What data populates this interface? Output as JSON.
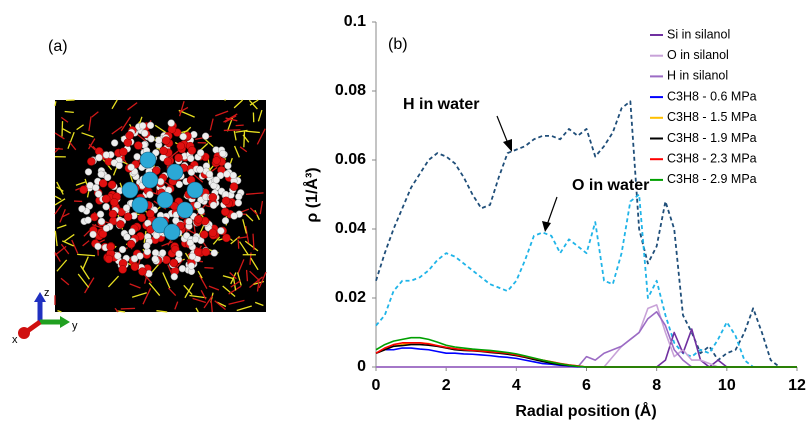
{
  "panel_a": {
    "label": "(a)",
    "axis_labels": {
      "x": "x",
      "y": "y",
      "z": "z"
    }
  },
  "chart_data": {
    "type": "line",
    "panel_label": "(b)",
    "x_label": "Radial position (Å)",
    "y_label": "ρ (1/Å³)",
    "xlim": [
      0,
      12
    ],
    "xticks": [
      0,
      2,
      4,
      6,
      8,
      10,
      12
    ],
    "ylim": [
      0,
      0.1
    ],
    "yticks": [
      0,
      0.02,
      0.04,
      0.06,
      0.08,
      0.1
    ],
    "grid": false,
    "legend": "upper right",
    "annotations": [
      {
        "text": "H in water",
        "color": "#1f4e79"
      },
      {
        "text": "O in water",
        "color": "#1fb4e8"
      }
    ],
    "x": [
      0,
      0.25,
      0.5,
      0.75,
      1,
      1.25,
      1.5,
      1.75,
      2,
      2.25,
      2.5,
      2.75,
      3,
      3.25,
      3.5,
      3.75,
      4,
      4.25,
      4.5,
      4.75,
      5,
      5.25,
      5.5,
      5.75,
      6,
      6.25,
      6.5,
      6.75,
      7,
      7.25,
      7.5,
      7.75,
      8,
      8.25,
      8.5,
      8.75,
      9,
      9.25,
      9.5,
      9.75,
      10,
      10.25,
      10.5,
      10.75,
      11,
      11.25,
      11.5,
      11.75,
      12
    ],
    "series": [
      {
        "name": "H in water",
        "color": "#1f4e79",
        "linestyle": "dashed",
        "in_legend": false,
        "values": [
          0.025,
          0.033,
          0.04,
          0.046,
          0.052,
          0.056,
          0.06,
          0.062,
          0.061,
          0.059,
          0.055,
          0.05,
          0.046,
          0.047,
          0.055,
          0.062,
          0.063,
          0.064,
          0.066,
          0.067,
          0.067,
          0.066,
          0.069,
          0.067,
          0.069,
          0.061,
          0.064,
          0.068,
          0.075,
          0.077,
          0.04,
          0.03,
          0.035,
          0.048,
          0.04,
          0.015,
          0.01,
          0.004,
          0.006,
          0.002,
          0.004,
          0.005,
          0.01,
          0.017,
          0.01,
          0.002,
          0,
          0,
          0
        ]
      },
      {
        "name": "O in water",
        "color": "#1fb4e8",
        "linestyle": "dashed",
        "in_legend": false,
        "values": [
          0.012,
          0.015,
          0.022,
          0.025,
          0.025,
          0.026,
          0.028,
          0.031,
          0.033,
          0.032,
          0.03,
          0.028,
          0.026,
          0.024,
          0.023,
          0.022,
          0.025,
          0.031,
          0.038,
          0.039,
          0.038,
          0.033,
          0.037,
          0.035,
          0.033,
          0.042,
          0.025,
          0.024,
          0.033,
          0.048,
          0.05,
          0.02,
          0.025,
          0.015,
          0.007,
          0.004,
          0.003,
          0.005,
          0.004,
          0.008,
          0.013,
          0.009,
          0.002,
          0,
          0,
          0,
          0,
          0,
          0
        ]
      },
      {
        "name": "Si in silanol",
        "color": "#7030a0",
        "linestyle": "solid",
        "in_legend": true,
        "values": [
          0,
          0,
          0,
          0,
          0,
          0,
          0,
          0,
          0,
          0,
          0,
          0,
          0,
          0,
          0,
          0,
          0,
          0,
          0,
          0,
          0,
          0,
          0,
          0,
          0,
          0,
          0,
          0,
          0,
          0,
          0,
          0,
          0,
          0.002,
          0.01,
          0.004,
          0.011,
          0.002,
          0,
          0.002,
          0,
          0,
          0,
          0,
          0,
          0,
          0,
          0,
          0
        ]
      },
      {
        "name": "O in silanol",
        "color": "#c8a2d8",
        "linestyle": "solid",
        "in_legend": true,
        "values": [
          0,
          0,
          0,
          0,
          0,
          0,
          0,
          0,
          0,
          0,
          0,
          0,
          0,
          0,
          0,
          0,
          0,
          0,
          0,
          0,
          0,
          0,
          0,
          0,
          0,
          0,
          0,
          0.003,
          0.006,
          0.008,
          0.01,
          0.017,
          0.018,
          0.01,
          0.003,
          0.005,
          0.002,
          0.002,
          0.001,
          0,
          0,
          0,
          0,
          0,
          0,
          0,
          0,
          0,
          0
        ]
      },
      {
        "name": "H in silanol",
        "color": "#9b6bc4",
        "linestyle": "solid",
        "in_legend": true,
        "values": [
          0,
          0,
          0,
          0,
          0,
          0,
          0,
          0,
          0,
          0,
          0,
          0,
          0,
          0,
          0,
          0,
          0,
          0,
          0,
          0,
          0,
          0,
          0,
          0,
          0.003,
          0.002,
          0.004,
          0.005,
          0.006,
          0.008,
          0.01,
          0.014,
          0.016,
          0.012,
          0.005,
          0.002,
          0,
          0,
          0,
          0,
          0,
          0,
          0,
          0,
          0,
          0,
          0,
          0,
          0
        ]
      },
      {
        "name": "C3H8 - 0.6 MPa",
        "color": "#0000ff",
        "linestyle": "solid",
        "in_legend": true,
        "values": [
          0.004,
          0.005,
          0.005,
          0.0055,
          0.0055,
          0.0052,
          0.005,
          0.0045,
          0.004,
          0.004,
          0.0038,
          0.0037,
          0.0035,
          0.0033,
          0.003,
          0.0028,
          0.0025,
          0.002,
          0.0015,
          0.001,
          0.0008,
          0.0005,
          0.0003,
          0.0001,
          0,
          0,
          0,
          0,
          0,
          0,
          0,
          0,
          0,
          0,
          0,
          0,
          0,
          0,
          0,
          0,
          0,
          0,
          0,
          0,
          0,
          0,
          0,
          0,
          0
        ]
      },
      {
        "name": "C3H8 - 1.5 MPa",
        "color": "#ffc000",
        "linestyle": "solid",
        "in_legend": true,
        "values": [
          0.004,
          0.005,
          0.006,
          0.0065,
          0.007,
          0.007,
          0.0068,
          0.0062,
          0.0055,
          0.005,
          0.005,
          0.0048,
          0.0047,
          0.0045,
          0.0042,
          0.004,
          0.0035,
          0.003,
          0.0025,
          0.002,
          0.0015,
          0.001,
          0.0006,
          0.0003,
          0,
          0,
          0,
          0,
          0,
          0,
          0,
          0,
          0,
          0,
          0,
          0,
          0,
          0,
          0,
          0,
          0,
          0,
          0,
          0,
          0,
          0,
          0,
          0,
          0
        ]
      },
      {
        "name": "C3H8 - 1.9 MPa",
        "color": "#000000",
        "linestyle": "solid",
        "in_legend": true,
        "values": [
          0.004,
          0.005,
          0.006,
          0.0062,
          0.0065,
          0.0065,
          0.0063,
          0.006,
          0.0055,
          0.005,
          0.0048,
          0.0047,
          0.0045,
          0.0042,
          0.004,
          0.0037,
          0.0033,
          0.0028,
          0.0022,
          0.0016,
          0.0011,
          0.0007,
          0.0004,
          0.0002,
          0,
          0,
          0,
          0,
          0,
          0,
          0,
          0,
          0,
          0,
          0,
          0,
          0,
          0,
          0,
          0,
          0,
          0,
          0,
          0,
          0,
          0,
          0,
          0,
          0
        ]
      },
      {
        "name": "C3H8 - 2.3 MPa",
        "color": "#ff0000",
        "linestyle": "solid",
        "in_legend": true,
        "values": [
          0.004,
          0.0055,
          0.0065,
          0.007,
          0.007,
          0.007,
          0.0067,
          0.0062,
          0.0057,
          0.0053,
          0.005,
          0.0048,
          0.0046,
          0.0044,
          0.0042,
          0.004,
          0.0035,
          0.003,
          0.0025,
          0.002,
          0.0015,
          0.001,
          0.0006,
          0.0003,
          0,
          0,
          0,
          0,
          0,
          0,
          0,
          0,
          0,
          0,
          0,
          0,
          0,
          0,
          0,
          0,
          0,
          0,
          0,
          0,
          0,
          0,
          0,
          0,
          0
        ]
      },
      {
        "name": "C3H8 - 2.9 MPa",
        "color": "#00a000",
        "linestyle": "solid",
        "in_legend": true,
        "values": [
          0.005,
          0.0065,
          0.0075,
          0.008,
          0.0085,
          0.0085,
          0.008,
          0.0072,
          0.0063,
          0.0058,
          0.0055,
          0.0052,
          0.005,
          0.0048,
          0.0045,
          0.0042,
          0.0038,
          0.0032,
          0.0026,
          0.002,
          0.0014,
          0.0009,
          0.0005,
          0.0002,
          0,
          0,
          0,
          0,
          0,
          0,
          0,
          0,
          0,
          0,
          0,
          0,
          0,
          0,
          0,
          0,
          0,
          0,
          0,
          0,
          0,
          0,
          0,
          0,
          0
        ]
      }
    ]
  }
}
